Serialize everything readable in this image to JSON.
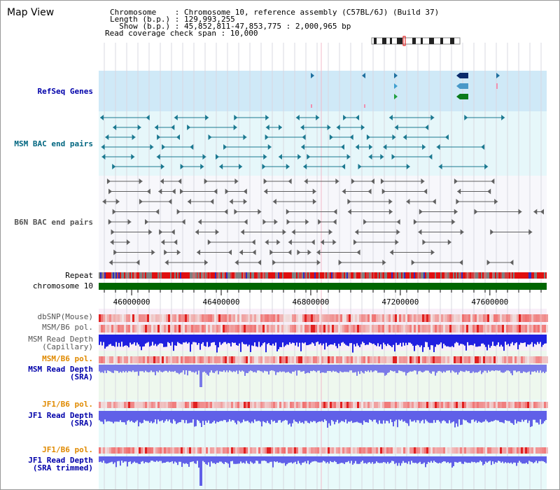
{
  "app": {
    "title": "Map View"
  },
  "info": {
    "lines": [
      "Chromosome    : Chromosome 10, reference assembly (C57BL/6J) (Build 37)",
      "Length (b.p.) : 129,993,255",
      "  Show (b.p.) : 45,852,811-47,853,775 : 2,000,965 bp",
      "Read coverage check span : 10,000"
    ]
  },
  "tracks": {
    "refseq": "RefSeq Genes",
    "msm_bac": "MSM BAC end pairs",
    "b6n_bac": "B6N BAC end pairs",
    "repeat": "Repeat",
    "chromosome": "chromosome 10",
    "dbsnp": "dbSNP(Mouse)",
    "msm_b6_pol_1": "MSM/B6 pol.",
    "msm_depth_cap": "MSM Read Depth\n(Capillary)",
    "msm_b6_pol_2": "MSM/B6 pol.",
    "msm_depth_sra": "MSM Read Depth\n(SRA)",
    "jf1_b6_pol_1": "JF1/B6 pol.",
    "jf1_depth_sra": "JF1 Read Depth\n(SRA)",
    "jf1_b6_pol_2": "JF1/B6 pol.",
    "jf1_depth_trim": "JF1 Read Depth\n(SRA trimmed)"
  },
  "axis": {
    "ticks": [
      {
        "label": "46000000",
        "value": 46000000
      },
      {
        "label": "46400000",
        "value": 46400000
      },
      {
        "label": "46800000",
        "value": 46800000
      },
      {
        "label": "47200000",
        "value": 47200000
      },
      {
        "label": "47600000",
        "value": 47600000
      }
    ],
    "range": [
      45852811,
      47853775
    ]
  },
  "colors": {
    "refseq_bg": "#cfe9f7",
    "msm_bac_bg": "#e6f7fa",
    "b6n_bac_bg": "#f7f7fb",
    "chromosome": "#006600",
    "repeat_red": "#e01010",
    "depth_blue": "#2020e0",
    "depth_light": "#7a7ae8",
    "pol_red": "#f06060"
  }
}
